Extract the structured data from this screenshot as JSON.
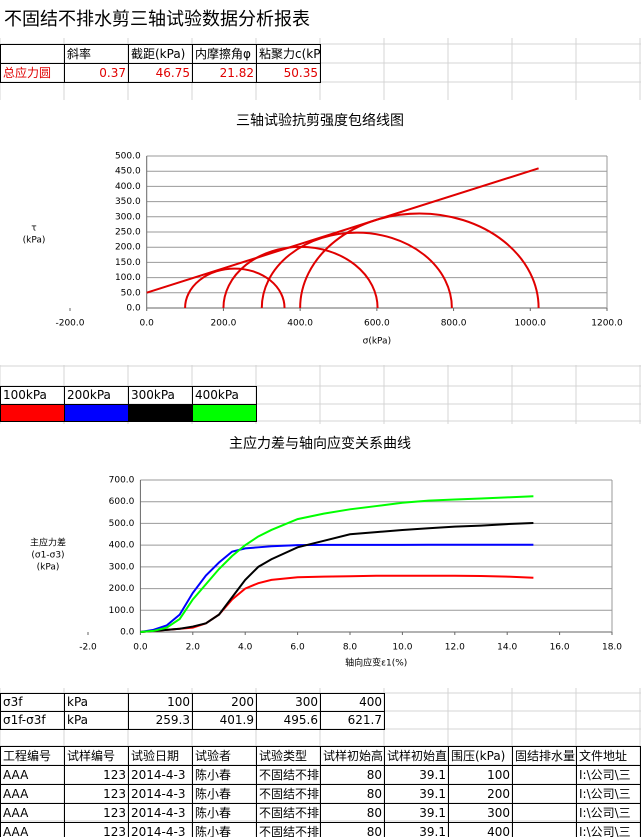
{
  "title": "不固结不排水剪三轴试验数据分析报表",
  "summary": {
    "headers": [
      "斜率",
      "截距(kPa)",
      "内摩擦角φ",
      "粘聚力c(kPa)"
    ],
    "row_label": "总应力圆",
    "values": [
      0.37,
      46.75,
      21.82,
      50.35
    ]
  },
  "chart_data": [
    {
      "type": "mohr",
      "title": "三轴试验抗剪强度包络线图",
      "x_label": "σ(kPa)",
      "y_label": [
        "τ",
        "(kPa)"
      ],
      "xlim": [
        -200,
        1200
      ],
      "ylim": [
        0,
        500
      ],
      "xticks": [
        {
          "value": -200,
          "label": "-200.0"
        },
        {
          "value": 0,
          "label": "0.0"
        },
        {
          "value": 200,
          "label": "200.0"
        },
        {
          "value": 400,
          "label": "400.0"
        },
        {
          "value": 600,
          "label": "600.0"
        },
        {
          "value": 800,
          "label": "800.0"
        },
        {
          "value": 1000,
          "label": "1000.0"
        },
        {
          "value": 1200,
          "label": "1200.0"
        }
      ],
      "yticks": [
        {
          "value": 0,
          "label": "0.0"
        },
        {
          "value": 50,
          "label": "50.0"
        },
        {
          "value": 100,
          "label": "100.0"
        },
        {
          "value": 150,
          "label": "150.0"
        },
        {
          "value": 200,
          "label": "200.0"
        },
        {
          "value": 250,
          "label": "250.0"
        },
        {
          "value": 300,
          "label": "300.0"
        },
        {
          "value": 350,
          "label": "350.0"
        },
        {
          "value": 400,
          "label": "400.0"
        },
        {
          "value": 450,
          "label": "450.0"
        },
        {
          "value": 500,
          "label": "500.0"
        }
      ],
      "grid": true,
      "color": "#e00000",
      "series": [
        {
          "color": "#e00000",
          "x": [
            0,
            1021.7
          ],
          "values": [
            50.35,
            459.5
          ]
        }
      ]
    },
    {
      "type": "line",
      "title": "主应力差与轴向应变关系曲线",
      "x_label": "轴向应变ε1(%)",
      "y_label": [
        "主应力差",
        "(σ1-σ3)",
        "(kPa)"
      ],
      "xlim": [
        -2,
        18
      ],
      "ylim": [
        0,
        700
      ],
      "xticks": [
        {
          "value": -2,
          "label": "-2.0"
        },
        {
          "value": 0,
          "label": "0.0"
        },
        {
          "value": 2,
          "label": "2.0"
        },
        {
          "value": 4,
          "label": "4.0"
        },
        {
          "value": 6,
          "label": "6.0"
        },
        {
          "value": 8,
          "label": "8.0"
        },
        {
          "value": 10,
          "label": "10.0"
        },
        {
          "value": 12,
          "label": "12.0"
        },
        {
          "value": 14,
          "label": "14.0"
        },
        {
          "value": 16,
          "label": "16.0"
        },
        {
          "value": 18,
          "label": "18.0"
        }
      ],
      "yticks": [
        {
          "value": 0,
          "label": "0.0"
        },
        {
          "value": 100,
          "label": "100.0"
        },
        {
          "value": 200,
          "label": "200.0"
        },
        {
          "value": 300,
          "label": "300.0"
        },
        {
          "value": 400,
          "label": "400.0"
        },
        {
          "value": 500,
          "label": "500.0"
        },
        {
          "value": 600,
          "label": "600.0"
        },
        {
          "value": 700,
          "label": "700.0"
        }
      ],
      "grid": true,
      "x": [
        0,
        0.5,
        1,
        1.5,
        2,
        2.5,
        3,
        3.5,
        4,
        4.5,
        5,
        6,
        7,
        8,
        9,
        10,
        11,
        12,
        13,
        14,
        15
      ],
      "series": [
        {
          "name": "100kPa",
          "color": "#ff0000",
          "values": [
            0,
            5,
            10,
            15,
            20,
            40,
            80,
            150,
            200,
            225,
            240,
            252,
            255,
            257,
            259,
            259,
            259,
            259,
            258,
            255,
            250
          ]
        },
        {
          "name": "200kPa",
          "color": "#0000ff",
          "values": [
            0,
            10,
            30,
            80,
            180,
            260,
            320,
            370,
            385,
            390,
            395,
            400,
            401,
            401,
            401,
            401,
            402,
            402,
            402,
            402,
            402
          ]
        },
        {
          "name": "300kPa",
          "color": "#000000",
          "values": [
            0,
            5,
            10,
            15,
            25,
            40,
            80,
            160,
            240,
            300,
            335,
            390,
            420,
            450,
            460,
            470,
            478,
            485,
            490,
            497,
            502
          ]
        },
        {
          "name": "400kPa",
          "color": "#00ff00",
          "values": [
            0,
            5,
            20,
            60,
            150,
            220,
            290,
            350,
            400,
            440,
            470,
            520,
            545,
            565,
            580,
            595,
            605,
            610,
            615,
            620,
            625
          ]
        }
      ]
    }
  ],
  "sigma_table": {
    "rows": [
      {
        "label": "σ3f",
        "unit": "kPa",
        "values": [
          100,
          200,
          300,
          400
        ]
      },
      {
        "label": "σ1f-σ3f",
        "unit": "kPa",
        "values": [
          259.3,
          401.9,
          495.6,
          621.7
        ]
      }
    ]
  },
  "record_table": {
    "headers": [
      "工程编号",
      "试样编号",
      "试验日期",
      "试验者",
      "试验类型",
      "试样初始高",
      "试样初始直",
      "围压(kPa)",
      "固结排水量",
      "文件地址"
    ],
    "rows": [
      [
        "AAA",
        123,
        "2014-4-3",
        "陈小春",
        "不固结不排",
        80,
        39.1,
        100,
        null,
        "I:\\公司\\三"
      ],
      [
        "AAA",
        123,
        "2014-4-3",
        "陈小春",
        "不固结不排",
        80,
        39.1,
        200,
        null,
        "I:\\公司\\三"
      ],
      [
        "AAA",
        123,
        "2014-4-3",
        "陈小春",
        "不固结不排",
        80,
        39.1,
        300,
        null,
        "I:\\公司\\三"
      ],
      [
        "AAA",
        123,
        "2014-4-3",
        "陈小春",
        "不固结不排",
        80,
        39.1,
        400,
        null,
        "I:\\公司\\三"
      ]
    ]
  }
}
